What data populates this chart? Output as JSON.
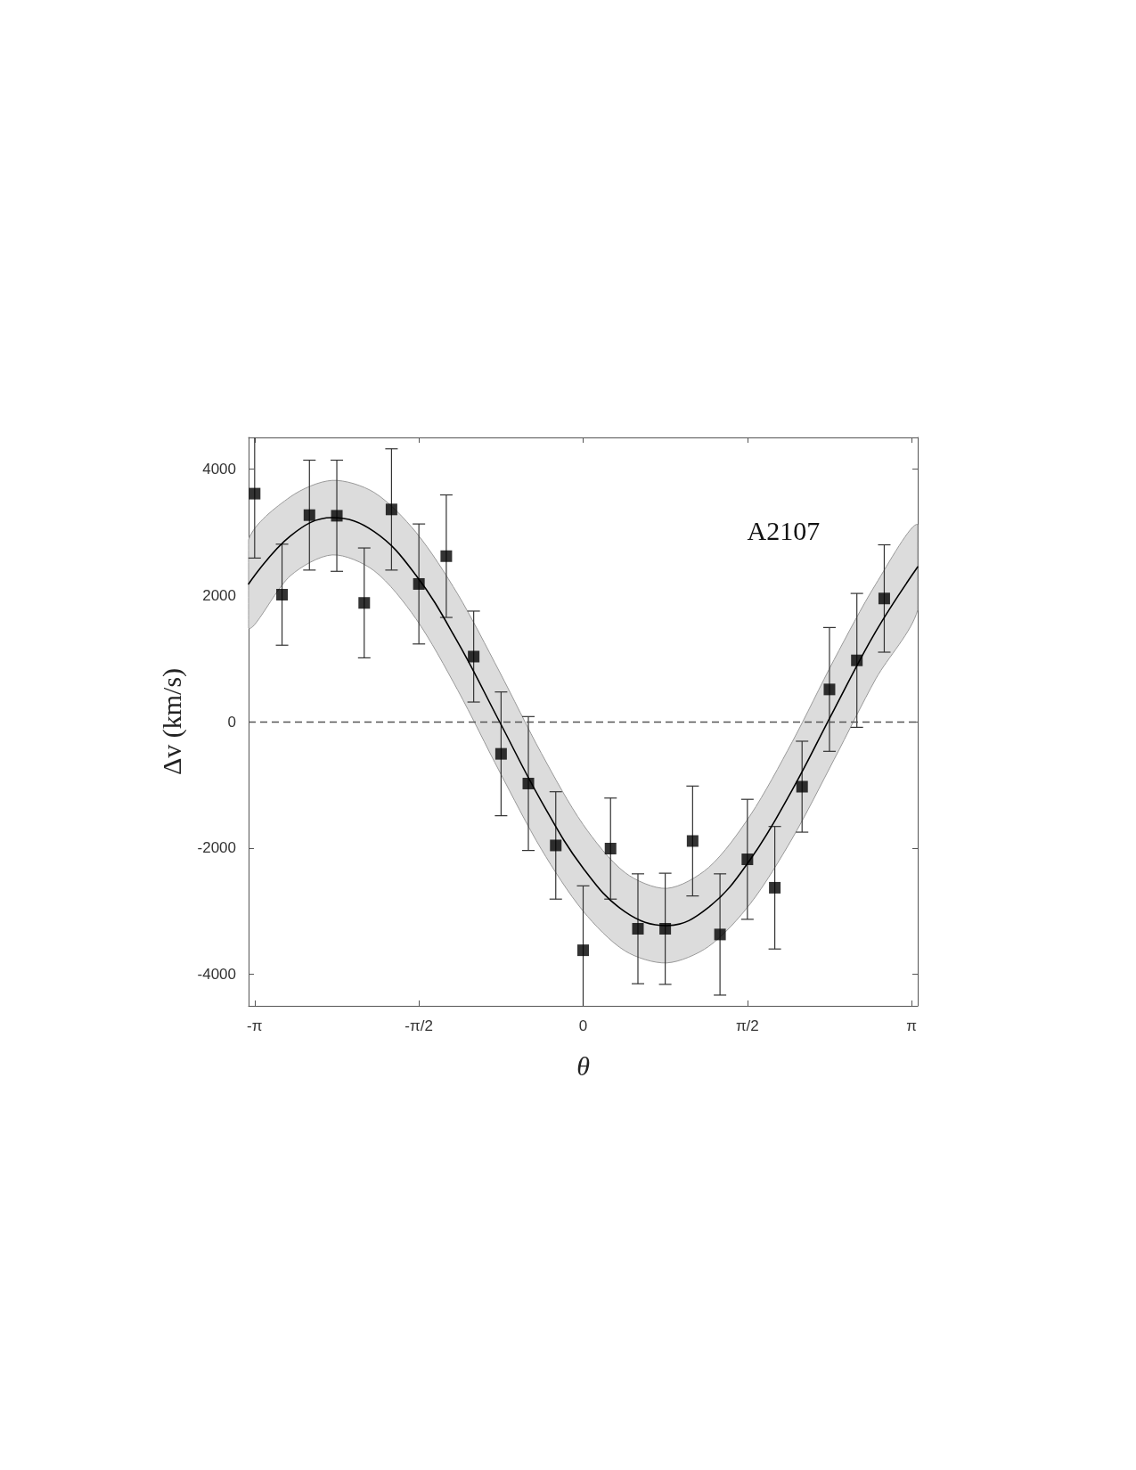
{
  "chart_data": {
    "type": "scatter",
    "xlabel": "θ",
    "ylabel": "Δv (km/s)",
    "annotations": [
      "A2107"
    ],
    "x": [
      -3.142,
      -2.88,
      -2.618,
      -2.356,
      -2.094,
      -1.833,
      -1.571,
      -1.309,
      -1.047,
      -0.785,
      -0.524,
      -0.262,
      0,
      0.262,
      0.524,
      0.785,
      1.047,
      1.309,
      1.571,
      1.833,
      2.094,
      2.356,
      2.618,
      2.88
    ],
    "series": [
      {
        "color": "#000000",
        "marker": "square",
        "values": [
          3610,
          2010,
          3270,
          3260,
          1880,
          3360,
          2180,
          2620,
          1030,
          -510,
          -980,
          -1960,
          -3620,
          -2010,
          -3280,
          -3280,
          -1890,
          -3370,
          -2180,
          -2630,
          -1030,
          510,
          970,
          1950
        ],
        "errors": [
          [
            2590,
            4500
          ],
          800,
          870,
          880,
          870,
          960,
          950,
          970,
          720,
          980,
          1060,
          850,
          [
            -4500,
            -2600
          ],
          800,
          870,
          880,
          870,
          960,
          950,
          970,
          720,
          980,
          1060,
          850
        ]
      },
      {
        "type": "line",
        "color": "#000000",
        "marker": "none",
        "line_style": "solid",
        "x": [
          -3.2,
          -2.8,
          -2.4,
          -2.0,
          -1.6,
          -1.2,
          -0.8,
          -0.4,
          0,
          0.4,
          0.8,
          1.2,
          1.6,
          2.0,
          2.4,
          2.8,
          3.2
        ],
        "values": [
          2180,
          2940,
          3230,
          3010,
          2320,
          1260,
          0,
          -1260,
          -2320,
          -3010,
          -3230,
          -2940,
          -2180,
          -1080,
          190,
          1430,
          2450
        ],
        "lower": [
          1480,
          2310,
          2640,
          2390,
          1630,
          500,
          -790,
          -2020,
          -3000,
          -3630,
          -3820,
          -3560,
          -2880,
          -1850,
          -600,
          680,
          1770
        ],
        "upper": [
          2880,
          3560,
          3820,
          3630,
          3000,
          2020,
          790,
          -500,
          -1630,
          -2390,
          -2640,
          -2310,
          -1480,
          -320,
          980,
          2180,
          3120
        ]
      }
    ],
    "xlim": [
      -3.2,
      3.2
    ],
    "xticks": [
      {
        "value": -3.142,
        "label": "-π"
      },
      {
        "value": -1.571,
        "label": "-π/2"
      },
      {
        "value": 0,
        "label": "0"
      },
      {
        "value": 1.571,
        "label": "π/2"
      },
      {
        "value": 3.142,
        "label": "π"
      }
    ],
    "ylim": [
      -4500,
      4500
    ],
    "yticks": [
      -4000,
      -2000,
      0,
      2000,
      4000
    ],
    "ref_lines": [
      {
        "axis": "y",
        "value": 0,
        "color": "#555555",
        "line_style": "dashed"
      }
    ],
    "grid": false
  }
}
